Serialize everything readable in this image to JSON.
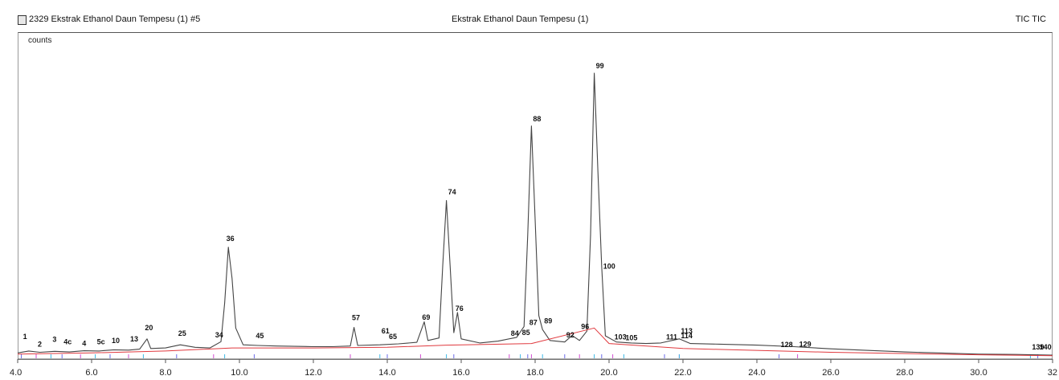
{
  "header": {
    "left": "2329 Ekstrak Ethanol Daun Tempesu (1) #5",
    "center": "Ekstrak Ethanol Daun Tempesu (1)",
    "right": "TIC TIC"
  },
  "chart_data": {
    "type": "line",
    "title": "Ekstrak Ethanol Daun Tempesu (1)",
    "ylabel": "counts",
    "xlabel": "",
    "xlim": [
      4.0,
      32.0
    ],
    "ylim": [
      0,
      100
    ],
    "grid": false,
    "x_tick_labels": [
      "4.0",
      "6.0",
      "8.0",
      "10.0",
      "12.0",
      "14.0",
      "16.0",
      "18.0",
      "20.0",
      "22.0",
      "24.0",
      "26.0",
      "28.0",
      "30.0",
      "32"
    ],
    "x_ticks": [
      4,
      6,
      8,
      10,
      12,
      14,
      16,
      18,
      20,
      22,
      24,
      26,
      28,
      30,
      32
    ],
    "series": [
      {
        "color": "#444444",
        "values": [
          [
            4.0,
            2
          ],
          [
            4.3,
            2.6
          ],
          [
            4.6,
            2.2
          ],
          [
            5.0,
            2.5
          ],
          [
            5.4,
            2.3
          ],
          [
            5.8,
            2.7
          ],
          [
            6.2,
            2.6
          ],
          [
            6.6,
            3.0
          ],
          [
            7.0,
            2.9
          ],
          [
            7.3,
            3.2
          ],
          [
            7.5,
            6.5
          ],
          [
            7.6,
            3.4
          ],
          [
            8.0,
            3.6
          ],
          [
            8.4,
            4.6
          ],
          [
            8.8,
            3.8
          ],
          [
            9.2,
            3.6
          ],
          [
            9.5,
            5.6
          ],
          [
            9.6,
            18
          ],
          [
            9.7,
            36
          ],
          [
            9.8,
            26
          ],
          [
            9.9,
            10
          ],
          [
            10.1,
            4.6
          ],
          [
            10.5,
            4.4
          ],
          [
            11.0,
            4.2
          ],
          [
            11.5,
            4.1
          ],
          [
            12.0,
            4.0
          ],
          [
            12.5,
            4.0
          ],
          [
            13.0,
            4.2
          ],
          [
            13.1,
            10.2
          ],
          [
            13.2,
            4.4
          ],
          [
            13.8,
            4.6
          ],
          [
            14.3,
            4.9
          ],
          [
            14.8,
            5.4
          ],
          [
            15.0,
            12.0
          ],
          [
            15.1,
            6.0
          ],
          [
            15.4,
            6.8
          ],
          [
            15.5,
            30
          ],
          [
            15.6,
            51
          ],
          [
            15.7,
            30
          ],
          [
            15.8,
            8.5
          ],
          [
            15.9,
            15.0
          ],
          [
            16.0,
            6.5
          ],
          [
            16.5,
            5.2
          ],
          [
            17.0,
            5.8
          ],
          [
            17.5,
            7.0
          ],
          [
            17.7,
            10.5
          ],
          [
            17.8,
            40
          ],
          [
            17.9,
            75
          ],
          [
            18.0,
            45
          ],
          [
            18.1,
            14
          ],
          [
            18.2,
            9.5
          ],
          [
            18.4,
            6.0
          ],
          [
            18.8,
            5.5
          ],
          [
            19.0,
            7.6
          ],
          [
            19.2,
            6.0
          ],
          [
            19.4,
            9.0
          ],
          [
            19.5,
            40
          ],
          [
            19.6,
            92
          ],
          [
            19.7,
            60
          ],
          [
            19.8,
            30
          ],
          [
            19.9,
            7.5
          ],
          [
            20.2,
            5.5
          ],
          [
            20.6,
            5.2
          ],
          [
            21.0,
            5.0
          ],
          [
            21.4,
            5.2
          ],
          [
            21.9,
            6.5
          ],
          [
            22.2,
            5.0
          ],
          [
            23.0,
            4.8
          ],
          [
            24.0,
            4.5
          ],
          [
            25.0,
            4.0
          ],
          [
            26.0,
            3.3
          ],
          [
            28.0,
            2.3
          ],
          [
            30.0,
            1.6
          ],
          [
            31.0,
            1.5
          ],
          [
            32.0,
            1.3
          ]
        ]
      },
      {
        "color": "#e0393e",
        "values": [
          [
            4.0,
            1.6
          ],
          [
            6.0,
            2.0
          ],
          [
            8.0,
            2.6
          ],
          [
            9.8,
            3.6
          ],
          [
            12.0,
            3.6
          ],
          [
            14.0,
            3.8
          ],
          [
            15.6,
            4.5
          ],
          [
            17.9,
            5.0
          ],
          [
            19.6,
            10.0
          ],
          [
            20.0,
            5.0
          ],
          [
            22.0,
            3.4
          ],
          [
            26.0,
            2.2
          ],
          [
            30.0,
            1.4
          ],
          [
            32.0,
            1.1
          ]
        ]
      }
    ],
    "peak_labels": [
      {
        "x": 4.1,
        "y": 6.0,
        "label": "1"
      },
      {
        "x": 4.5,
        "y": 3.5,
        "label": "2"
      },
      {
        "x": 4.9,
        "y": 5.0,
        "label": "3"
      },
      {
        "x": 5.2,
        "y": 4.3,
        "label": "4c"
      },
      {
        "x": 5.7,
        "y": 3.8,
        "label": "4"
      },
      {
        "x": 6.1,
        "y": 4.3,
        "label": "5c"
      },
      {
        "x": 6.5,
        "y": 4.6,
        "label": "10"
      },
      {
        "x": 7.0,
        "y": 5.2,
        "label": "13"
      },
      {
        "x": 7.4,
        "y": 8.8,
        "label": "20"
      },
      {
        "x": 8.3,
        "y": 7.0,
        "label": "25"
      },
      {
        "x": 9.3,
        "y": 6.5,
        "label": "34"
      },
      {
        "x": 9.6,
        "y": 37.5,
        "label": "36"
      },
      {
        "x": 10.4,
        "y": 6.2,
        "label": "45"
      },
      {
        "x": 13.0,
        "y": 12.0,
        "label": "57"
      },
      {
        "x": 13.8,
        "y": 7.8,
        "label": "61"
      },
      {
        "x": 14.0,
        "y": 6.0,
        "label": "65"
      },
      {
        "x": 14.9,
        "y": 12.2,
        "label": "69"
      },
      {
        "x": 15.6,
        "y": 52.5,
        "label": "74"
      },
      {
        "x": 15.8,
        "y": 15.0,
        "label": "76"
      },
      {
        "x": 17.3,
        "y": 7.0,
        "label": "84"
      },
      {
        "x": 17.6,
        "y": 7.2,
        "label": "85"
      },
      {
        "x": 17.8,
        "y": 10.5,
        "label": "87"
      },
      {
        "x": 17.9,
        "y": 76,
        "label": "88"
      },
      {
        "x": 18.2,
        "y": 11.0,
        "label": "89"
      },
      {
        "x": 18.8,
        "y": 6.5,
        "label": "92"
      },
      {
        "x": 19.2,
        "y": 9.2,
        "label": "96"
      },
      {
        "x": 19.6,
        "y": 93,
        "label": "99"
      },
      {
        "x": 19.8,
        "y": 28.5,
        "label": "100"
      },
      {
        "x": 20.1,
        "y": 5.8,
        "label": "103"
      },
      {
        "x": 20.4,
        "y": 5.6,
        "label": "105"
      },
      {
        "x": 21.5,
        "y": 5.8,
        "label": "111"
      },
      {
        "x": 21.9,
        "y": 7.8,
        "label": "113"
      },
      {
        "x": 21.9,
        "y": 6.2,
        "label": "114"
      },
      {
        "x": 24.6,
        "y": 3.3,
        "label": "128"
      },
      {
        "x": 25.1,
        "y": 3.5,
        "label": "129"
      },
      {
        "x": 31.4,
        "y": 2.6,
        "label": "139"
      },
      {
        "x": 31.6,
        "y": 2.6,
        "label": "140"
      }
    ]
  }
}
